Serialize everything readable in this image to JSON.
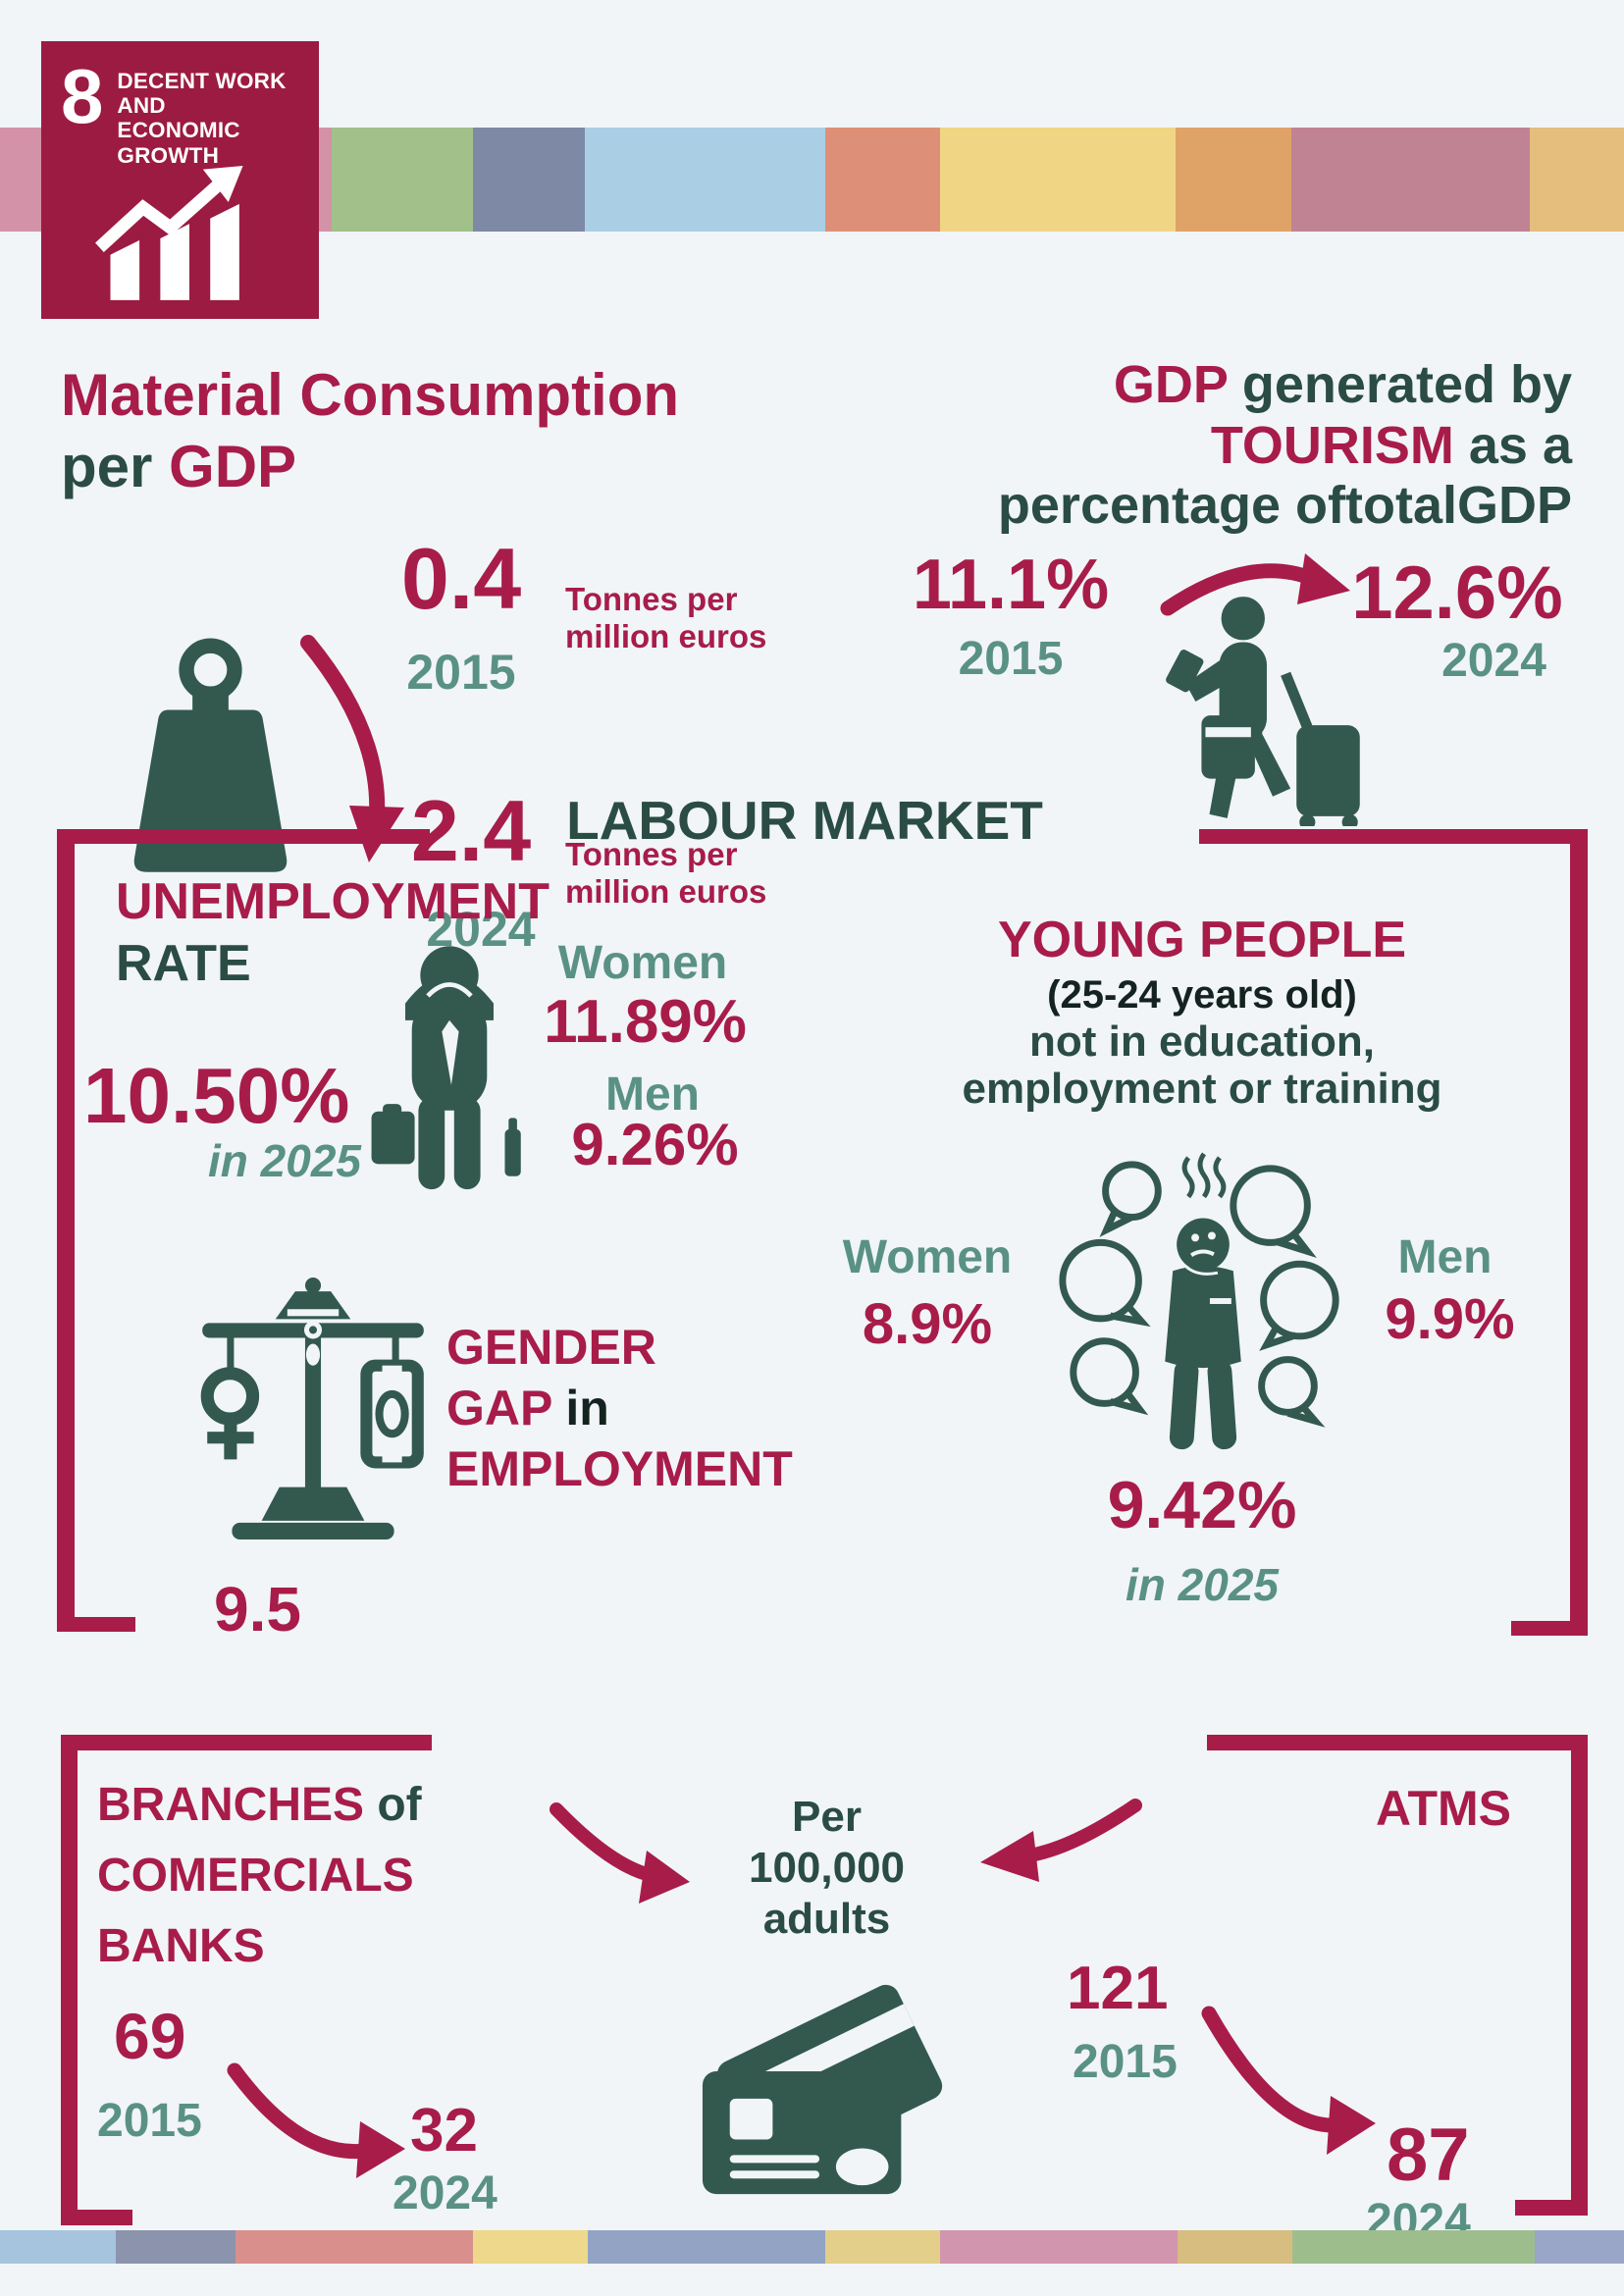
{
  "colors": {
    "background": "#f1f5f7",
    "crimson": "#a81c4a",
    "logo_maroon": "#9c1b42",
    "teal_dark": "#2a4c43",
    "teal_icon": "#33594f",
    "teal_mid": "#5a9185",
    "ink": "#14231f"
  },
  "sdg": {
    "number": "8",
    "title_l1": "DECENT WORK AND",
    "title_l2": "ECONOMIC GROWTH"
  },
  "material": {
    "title1": "Material Consumption",
    "title2a": "per",
    "title2b": "GDP",
    "v2015": "0.4",
    "y2015": "2015",
    "unit1a": "Tonnes per",
    "unit1b": "million euros",
    "v2024": "2.4",
    "y2024": "2024",
    "unit2a": "Tonnes per",
    "unit2b": "million euros"
  },
  "tourism": {
    "t1a": "GDP",
    "t1b": "generated by",
    "t2a": "TOURISM",
    "t2b": "as a",
    "t3": "percentage oftotalGDP",
    "v2015": "11.1%",
    "y2015": "2015",
    "v2024": "12.6%",
    "y2024": "2024"
  },
  "labour": {
    "heading": "LABOUR MARKET"
  },
  "unemployment": {
    "t1": "UNEMPLOYMENT",
    "t2": "RATE",
    "total": "10.50%",
    "note": "in 2025",
    "women_label": "Women",
    "women_value": "11.89%",
    "men_label": "Men",
    "men_value": "9.26%"
  },
  "neet": {
    "title": "YOUNG PEOPLE",
    "subtitle": "(25-24 years old)",
    "line2": "not in education,",
    "line3": "employment or training",
    "women_label": "Women",
    "women_value": "8.9%",
    "men_label": "Men",
    "men_value": "9.9%",
    "total": "9.42%",
    "note": "in 2025"
  },
  "gender_gap": {
    "l1": "GENDER",
    "l2a": "GAP",
    "l2b": "in",
    "l3": "EMPLOYMENT",
    "value": "9.5"
  },
  "banks": {
    "t1a": "BRANCHES",
    "t1b": "of",
    "t2": "COMERCIALS",
    "t3": "BANKS",
    "v2015": "69",
    "y2015": "2015",
    "v2024": "32",
    "y2024": "2024"
  },
  "center_unit": {
    "l1": "Per",
    "l2": "100,000",
    "l3": "adults"
  },
  "atms": {
    "title": "ATMS",
    "v2015": "121",
    "y2015": "2015",
    "v2024": "87",
    "y2024": "2024"
  },
  "strips": {
    "top": [
      {
        "color": "#d392a7",
        "w": 20.4
      },
      {
        "color": "#a2c089",
        "w": 8.7
      },
      {
        "color": "#7e89a6",
        "w": 6.9
      },
      {
        "color": "#aacfe4",
        "w": 14.8
      },
      {
        "color": "#dd9077",
        "w": 7.1
      },
      {
        "color": "#f0d585",
        "w": 14.5
      },
      {
        "color": "#dfa368",
        "w": 7.1
      },
      {
        "color": "#c08394",
        "w": 14.7
      },
      {
        "color": "#e5bd7d",
        "w": 5.8
      }
    ],
    "bottom": [
      {
        "color": "#a6c4de",
        "w": 7.1
      },
      {
        "color": "#8b93ad",
        "w": 7.4
      },
      {
        "color": "#d9908c",
        "w": 14.6
      },
      {
        "color": "#edd88b",
        "w": 7.1
      },
      {
        "color": "#93a3c4",
        "w": 14.6
      },
      {
        "color": "#e3cf8a",
        "w": 7.1
      },
      {
        "color": "#d295ae",
        "w": 14.6
      },
      {
        "color": "#d7bd7f",
        "w": 7.1
      },
      {
        "color": "#9ebd8c",
        "w": 14.9
      },
      {
        "color": "#99a6c8",
        "w": 5.5
      }
    ]
  }
}
